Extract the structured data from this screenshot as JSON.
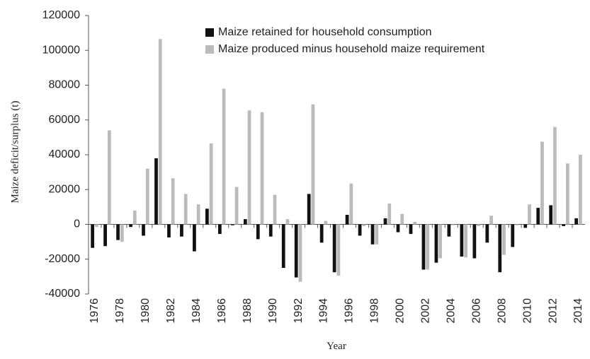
{
  "chart_data": {
    "type": "bar",
    "x_label": "Year",
    "y_label": "Maize deficit/surplus (t)",
    "categories": [
      "1976",
      null,
      "1978",
      null,
      "1980",
      null,
      "1982",
      null,
      "1984",
      null,
      "1986",
      null,
      "1988",
      null,
      "1990",
      null,
      "1992",
      null,
      "1994",
      null,
      "1996",
      null,
      "1998",
      null,
      "2000",
      null,
      "2002",
      null,
      "2004",
      null,
      "2006",
      null,
      "2008",
      null,
      "2010",
      null,
      "2012",
      null,
      "2014"
    ],
    "series": [
      {
        "name": "Maize retained for household consumption",
        "color": "#111111",
        "values": [
          -13500,
          -12500,
          -9000,
          -1500,
          -6500,
          38000,
          -7500,
          -7000,
          -15500,
          9000,
          -5500,
          -500,
          3000,
          -8500,
          -7000,
          -25000,
          -30500,
          17500,
          -10500,
          -27500,
          5500,
          -6500,
          -11500,
          3500,
          -4500,
          -5500,
          -26000,
          -22000,
          -7000,
          -18500,
          -19500,
          -10500,
          -27500,
          -13000,
          -2000,
          9500,
          11000,
          -1000,
          3500
        ]
      },
      {
        "name": "Maize produced minus household maize requirement",
        "color": "#bbbbbb",
        "values": [
          -1500,
          54000,
          -10000,
          8000,
          32000,
          106500,
          26500,
          17500,
          11500,
          46500,
          78000,
          21500,
          65500,
          64500,
          17000,
          3000,
          -33000,
          69000,
          2000,
          -29500,
          23500,
          -1000,
          -11500,
          12000,
          6000,
          1500,
          -26000,
          -19500,
          -500,
          -19000,
          -1000,
          5000,
          -17500,
          -500,
          11500,
          47500,
          56000,
          35000,
          40000
        ]
      }
    ],
    "ylim": [
      -40000,
      120000
    ],
    "yticks": [
      -40000,
      -20000,
      0,
      20000,
      40000,
      60000,
      80000,
      100000,
      120000
    ],
    "grid": false
  }
}
